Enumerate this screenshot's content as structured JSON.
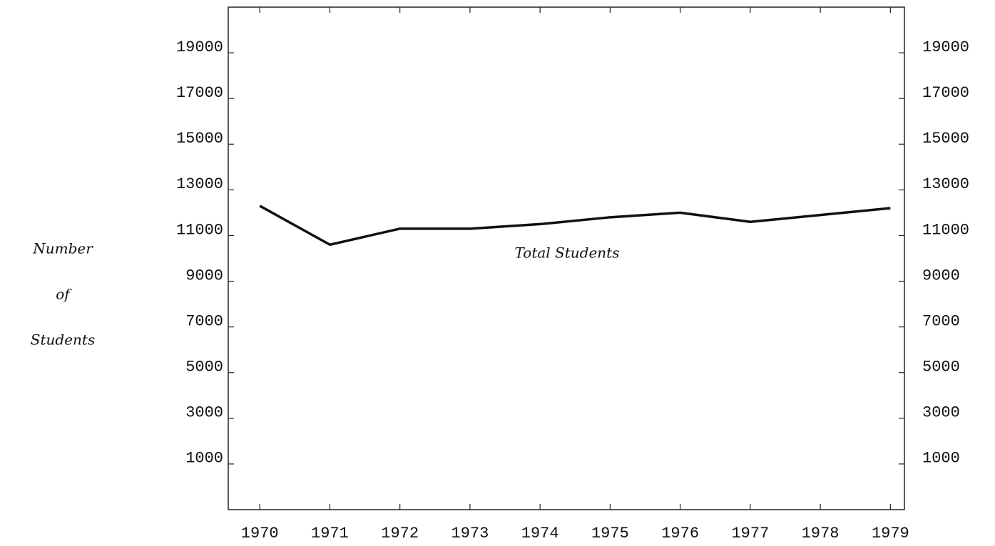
{
  "chart_data": {
    "type": "line",
    "ylabel": [
      "Number",
      "of",
      "Students"
    ],
    "annotation": "Total Students",
    "x": [
      1970,
      1971,
      1972,
      1973,
      1974,
      1975,
      1976,
      1977,
      1978,
      1979
    ],
    "series": [
      {
        "name": "Total Students",
        "color": "#111111",
        "values": [
          12300,
          10600,
          11300,
          11300,
          11500,
          11800,
          12000,
          11600,
          11900,
          12200
        ]
      }
    ],
    "xlim": [
      1969.55,
      1979.2
    ],
    "xticks": [
      1970,
      1971,
      1972,
      1973,
      1974,
      1975,
      1976,
      1977,
      1978,
      1979
    ],
    "ylim": [
      -1000,
      21000
    ],
    "yticks": [
      1000,
      3000,
      5000,
      7000,
      9000,
      11000,
      13000,
      15000,
      17000,
      19000
    ],
    "y2lim": [
      -1000,
      21000
    ],
    "y2ticks": [
      1000,
      3000,
      5000,
      7000,
      9000,
      11000,
      13000,
      15000,
      17000,
      19000
    ],
    "grid": false
  }
}
